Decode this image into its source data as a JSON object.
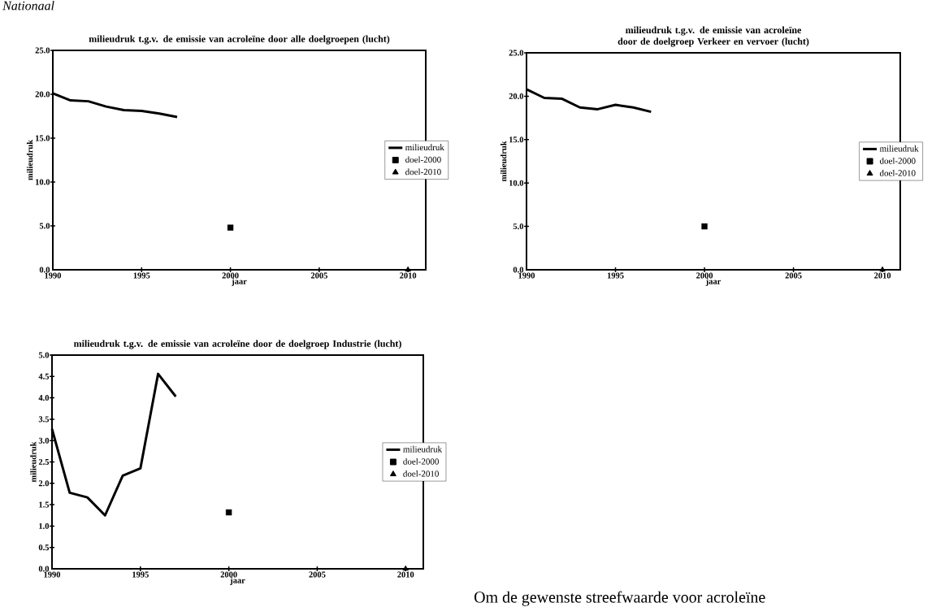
{
  "chart_data": [
    {
      "type": "line",
      "title": "milieudruk t.g.v. de emissie van acroleïne door alle doelgroepen (lucht)",
      "xlabel": "jaar",
      "ylabel": "milieudruk",
      "xlim": [
        1990,
        2011
      ],
      "ylim": [
        0,
        25
      ],
      "xticks": [
        1990,
        1995,
        2000,
        2005,
        2010
      ],
      "yticks": [
        {
          "value": 0,
          "label": "0.0"
        },
        {
          "value": 5,
          "label": "5.0"
        },
        {
          "value": 10,
          "label": "10.0"
        },
        {
          "value": 15,
          "label": "15.0"
        },
        {
          "value": 20,
          "label": "20.0"
        },
        {
          "value": 25,
          "label": "25.0"
        }
      ],
      "legend": "right",
      "annotations": [
        "Nationaal"
      ],
      "series": [
        {
          "name": "milieudruk",
          "color": "#000000",
          "marker": "none",
          "x": [
            1990,
            1991,
            1992,
            1993,
            1994,
            1995,
            1996,
            1997
          ],
          "values": [
            20.1,
            19.3,
            19.2,
            18.6,
            18.2,
            18.1,
            17.8,
            17.4
          ]
        },
        {
          "name": "doel-2000",
          "color": "#000000",
          "type": "scatter",
          "marker": "square",
          "x": [
            2000
          ],
          "values": [
            4.8
          ]
        },
        {
          "name": "doel-2010",
          "color": "#000000",
          "type": "scatter",
          "marker": "triangle",
          "x": [
            2010
          ],
          "values": [
            0
          ]
        }
      ]
    },
    {
      "type": "line",
      "title": "milieudruk t.g.v. de emissie van acroleïne door de doelgroep Verkeer en vervoer (lucht)",
      "xlabel": "jaar",
      "ylabel": "milieudruk",
      "xlim": [
        1990,
        2011
      ],
      "ylim": [
        0,
        25
      ],
      "xticks": [
        1990,
        1995,
        2000,
        2005,
        2010
      ],
      "yticks": [
        {
          "value": 0,
          "label": "0.0"
        },
        {
          "value": 5,
          "label": "5.0"
        },
        {
          "value": 10,
          "label": "10.0"
        },
        {
          "value": 15,
          "label": "15.0"
        },
        {
          "value": 20,
          "label": "20.0"
        },
        {
          "value": 25,
          "label": "25.0"
        }
      ],
      "legend": "right",
      "series": [
        {
          "name": "milieudruk",
          "color": "#000000",
          "marker": "none",
          "x": [
            1990,
            1991,
            1992,
            1993,
            1994,
            1995,
            1996,
            1997
          ],
          "values": [
            20.8,
            19.8,
            19.7,
            18.7,
            18.5,
            19.0,
            18.7,
            18.2
          ]
        },
        {
          "name": "doel-2000",
          "color": "#000000",
          "type": "scatter",
          "marker": "square",
          "x": [
            2000
          ],
          "values": [
            5.0
          ]
        },
        {
          "name": "doel-2010",
          "color": "#000000",
          "type": "scatter",
          "marker": "triangle",
          "x": [
            2010
          ],
          "values": [
            0
          ]
        }
      ]
    },
    {
      "type": "line",
      "title": "milieudruk t.g.v. de emissie van acroleïne door de doelgroep Industrie (lucht)",
      "xlabel": "jaar",
      "ylabel": "milieudruk",
      "xlim": [
        1990,
        2011
      ],
      "ylim": [
        0,
        5
      ],
      "xticks": [
        1990,
        1995,
        2000,
        2005,
        2010
      ],
      "yticks": [
        {
          "value": 0,
          "label": "0.0"
        },
        {
          "value": 0.5,
          "label": "0.5"
        },
        {
          "value": 1,
          "label": "1.0"
        },
        {
          "value": 1.5,
          "label": "1.5"
        },
        {
          "value": 2,
          "label": "2.0"
        },
        {
          "value": 2.5,
          "label": "2.5"
        },
        {
          "value": 3,
          "label": "3.0"
        },
        {
          "value": 3.5,
          "label": "3.5"
        },
        {
          "value": 4,
          "label": "4.0"
        },
        {
          "value": 4.5,
          "label": "4.5"
        },
        {
          "value": 5,
          "label": "5.0"
        }
      ],
      "legend": "right",
      "annotations": [
        "Om de gewenste streefwaarde voor acroleïne"
      ],
      "series": [
        {
          "name": "milieudruk",
          "color": "#000000",
          "marker": "none",
          "x": [
            1990,
            1991,
            1992,
            1993,
            1994,
            1995,
            1996,
            1997
          ],
          "values": [
            3.27,
            1.78,
            1.67,
            1.25,
            2.18,
            2.35,
            4.56,
            4.03
          ]
        },
        {
          "name": "doel-2000",
          "color": "#000000",
          "type": "scatter",
          "marker": "square",
          "x": [
            2000
          ],
          "values": [
            1.32
          ]
        },
        {
          "name": "doel-2010",
          "color": "#000000",
          "type": "scatter",
          "marker": "triangle",
          "x": [
            2010
          ],
          "values": [
            0
          ]
        }
      ]
    }
  ]
}
